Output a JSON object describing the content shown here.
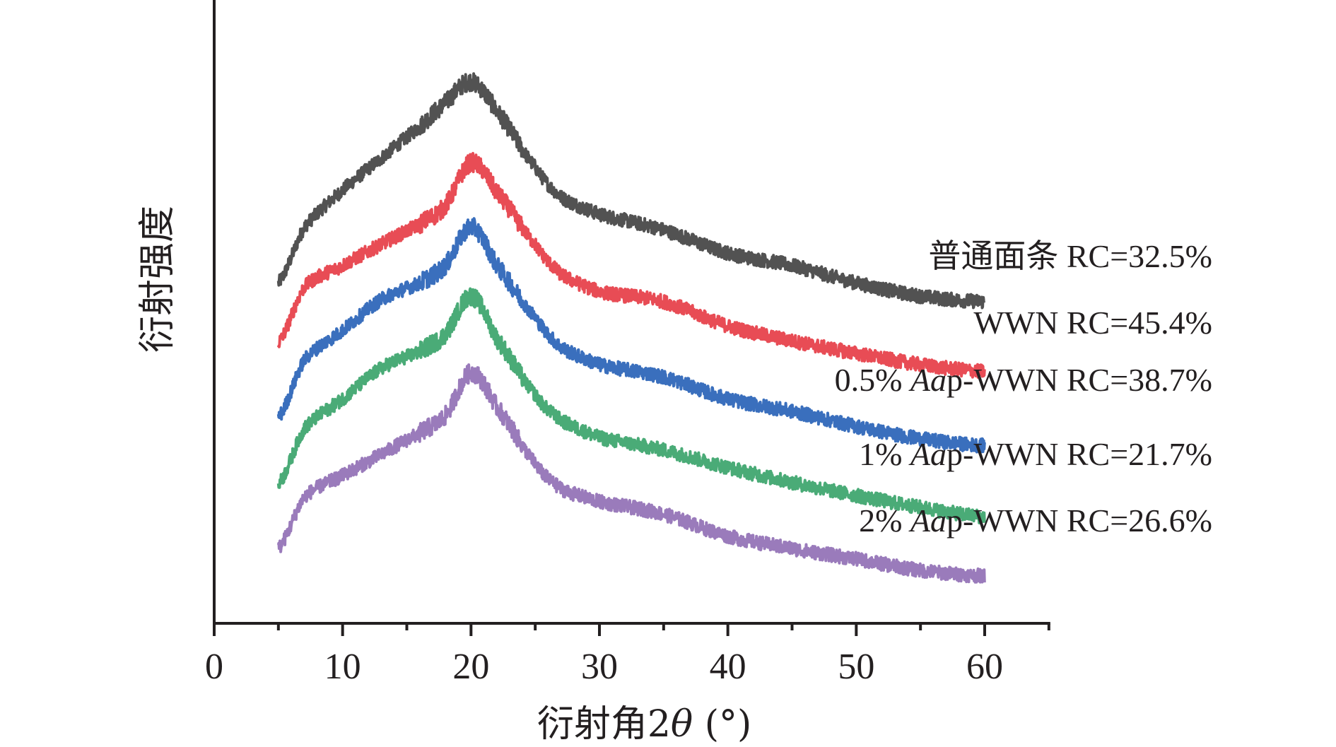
{
  "chart_data": {
    "type": "line",
    "title": "",
    "xlabel": "衍射角2θ (°)",
    "xlabel_parts": {
      "prefix": "衍射角2",
      "symbol": "θ",
      "suffix": " (°)"
    },
    "ylabel": "衍射强度",
    "xlim": [
      0,
      65
    ],
    "ylim": [
      0,
      100
    ],
    "y_units": "a.u. (arbitrary, no tick labels shown)",
    "x_ticks": [
      0,
      10,
      20,
      30,
      40,
      50,
      60
    ],
    "x_tick_labels": [
      "0",
      "10",
      "20",
      "30",
      "40",
      "50",
      "60"
    ],
    "x_minor_ticks": [
      5,
      15,
      25,
      35,
      45,
      55,
      65
    ],
    "grid": false,
    "legend": "inline labels at right end of each curve",
    "x": [
      5,
      7,
      10,
      13,
      16,
      18,
      20,
      22,
      25,
      27,
      30,
      35,
      40,
      45,
      50,
      55,
      60
    ],
    "series": [
      {
        "name": "普通面条 RC=32.5%",
        "label_parts": [
          {
            "text": "普通面条 RC=32.5%",
            "italic": false
          }
        ],
        "color": "#525252",
        "values": [
          54.6,
          63.5,
          69.5,
          74.6,
          79.6,
          83.5,
          86.9,
          82.1,
          73.2,
          68.4,
          65.6,
          63.1,
          59.4,
          57.4,
          54.6,
          52.5,
          51.6
        ]
      },
      {
        "name": "WWN RC=45.4%",
        "label_parts": [
          {
            "text": "WWN RC=45.4%",
            "italic": false
          }
        ],
        "color": "#e84c55",
        "values": [
          45.0,
          53.9,
          57.4,
          60.8,
          64.0,
          67.0,
          73.9,
          69.1,
          60.8,
          56.0,
          53.2,
          51.6,
          47.7,
          45.3,
          43.3,
          41.5,
          40.4
        ]
      },
      {
        "name": "0.5% Aap-WWN RC=38.7%",
        "label_parts": [
          {
            "text": "0.5% ",
            "italic": false
          },
          {
            "text": "Aa",
            "italic": true
          },
          {
            "text": "p-WWN RC=38.7%",
            "italic": false
          }
        ],
        "color": "#3a6fbd",
        "values": [
          33.0,
          42.2,
          47.0,
          51.9,
          54.6,
          57.4,
          63.6,
          57.4,
          49.1,
          44.3,
          41.5,
          39.5,
          36.0,
          34.0,
          31.6,
          29.6,
          28.5
        ]
      },
      {
        "name": "1% Aap-WWN RC=21.7%",
        "label_parts": [
          {
            "text": "1% ",
            "italic": false
          },
          {
            "text": "Aa",
            "italic": true
          },
          {
            "text": "p-WWN RC=21.7%",
            "italic": false
          }
        ],
        "color": "#4aab77",
        "values": [
          22.3,
          31.2,
          36.0,
          40.9,
          43.6,
          46.4,
          52.5,
          45.7,
          36.7,
          32.6,
          29.8,
          27.8,
          25.0,
          22.6,
          20.5,
          18.6,
          17.1
        ]
      },
      {
        "name": "2% Aap-WWN RC=26.6%",
        "label_parts": [
          {
            "text": "2% ",
            "italic": false
          },
          {
            "text": "Aa",
            "italic": true
          },
          {
            "text": "p-WWN RC=26.6%",
            "italic": false
          }
        ],
        "color": "#9a7bbb",
        "values": [
          12.0,
          20.2,
          23.7,
          27.1,
          30.5,
          33.3,
          40.2,
          34.7,
          25.7,
          21.6,
          19.5,
          17.5,
          14.0,
          12.0,
          10.3,
          8.5,
          7.6
        ]
      }
    ]
  }
}
